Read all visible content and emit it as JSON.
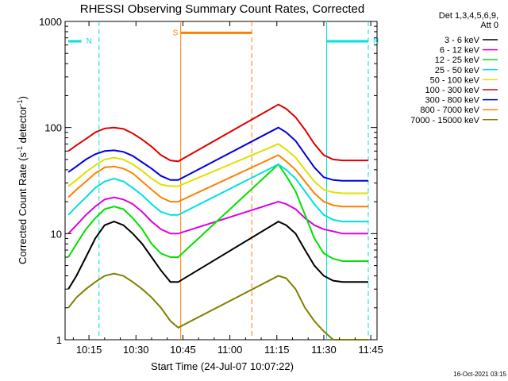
{
  "chart_data": {
    "type": "line",
    "title": "RHESSI Observing Summary Count Rates, Corrected",
    "xlabel": "Start Time (24-Jul-07 10:07:22)",
    "ylabel": "Corrected Count Rate (s⁻¹ detector⁻¹)",
    "ylabel_main": "Corrected Count Rate (s",
    "ylabel_sup1": "-1",
    "ylabel_mid": " detector",
    "ylabel_sup2": "-1",
    "ylabel_end": ")",
    "yscale": "log",
    "ylim": [
      1,
      1000
    ],
    "xlim_minutes": [
      7.37,
      107.0
    ],
    "x_ticks": [
      {
        "label": "10:15",
        "minute": 15
      },
      {
        "label": "10:30",
        "minute": 30
      },
      {
        "label": "10:45",
        "minute": 45
      },
      {
        "label": "11:00",
        "minute": 60
      },
      {
        "label": "11:15",
        "minute": 75
      },
      {
        "label": "11:30",
        "minute": 90
      },
      {
        "label": "11:45",
        "minute": 105
      }
    ],
    "y_ticks": [
      {
        "label": "1",
        "value": 1
      },
      {
        "label": "10",
        "value": 10
      },
      {
        "label": "100",
        "value": 100
      },
      {
        "label": "1000",
        "value": 1000
      }
    ],
    "legend_header": [
      "Det 1,3,4,5,6,9,",
      "Att 0"
    ],
    "legend_position": "right",
    "series": [
      {
        "name": "3 - 6 keV",
        "color": "#000000",
        "x": [
          8.4,
          11,
          14,
          17,
          20,
          23,
          26,
          29,
          32,
          35,
          38,
          41,
          43.5,
          75.5,
          78,
          81,
          84,
          87,
          90,
          93,
          96,
          99,
          102,
          104.2
        ],
        "y": [
          3.0,
          4.0,
          6.0,
          9.0,
          12.0,
          13.0,
          12.0,
          10.0,
          8.0,
          6.0,
          4.5,
          3.5,
          3.5,
          13.0,
          12.0,
          10.0,
          7.0,
          5.0,
          4.0,
          3.6,
          3.5,
          3.5,
          3.5,
          3.5
        ]
      },
      {
        "name": "6 - 12 keV",
        "color": "#e000e0",
        "x": [
          8.4,
          11,
          14,
          17,
          20,
          23,
          26,
          29,
          32,
          35,
          38,
          41,
          43.5,
          75.5,
          78,
          81,
          84,
          87,
          90,
          93,
          96,
          99,
          102,
          104.2
        ],
        "y": [
          10.0,
          12.0,
          15.0,
          18.0,
          21.0,
          22.0,
          21.0,
          19.0,
          16.0,
          13.0,
          11.0,
          10.0,
          10.0,
          20.0,
          19.0,
          17.0,
          14.0,
          12.0,
          11.0,
          10.5,
          10.0,
          10.0,
          10.0,
          10.0
        ]
      },
      {
        "name": "12 - 25 keV",
        "color": "#00e000",
        "x": [
          8.4,
          11,
          14,
          17,
          20,
          23,
          26,
          29,
          32,
          35,
          38,
          41,
          43.5,
          75.5,
          78,
          81,
          84,
          87,
          90,
          93,
          96,
          99,
          102,
          104.2
        ],
        "y": [
          6.0,
          8.0,
          11.0,
          14.0,
          17.0,
          18.0,
          17.0,
          14.0,
          11.0,
          8.0,
          6.5,
          6.0,
          6.0,
          45.0,
          35.0,
          25.0,
          15.0,
          9.0,
          6.5,
          5.8,
          5.5,
          5.5,
          5.5,
          5.5
        ]
      },
      {
        "name": "25 - 50 keV",
        "color": "#00e0e0",
        "x": [
          8.4,
          11,
          14,
          17,
          20,
          23,
          26,
          29,
          32,
          35,
          38,
          41,
          43.5,
          75.5,
          78,
          81,
          84,
          87,
          90,
          93,
          96,
          99,
          102,
          104.2
        ],
        "y": [
          15.0,
          18.0,
          22.0,
          27.0,
          31.0,
          33.0,
          31.0,
          27.0,
          23.0,
          19.0,
          16.0,
          15.0,
          15.0,
          45.0,
          40.0,
          33.0,
          25.0,
          19.0,
          15.0,
          13.5,
          13.0,
          13.0,
          13.0,
          13.0
        ]
      },
      {
        "name": "50 - 100 keV",
        "color": "#e0e000",
        "x": [
          8.4,
          11,
          14,
          17,
          20,
          23,
          26,
          29,
          32,
          35,
          38,
          41,
          43.5,
          75.5,
          78,
          81,
          84,
          87,
          90,
          93,
          96,
          99,
          102,
          104.2
        ],
        "y": [
          28.0,
          32.0,
          38.0,
          44.0,
          50.0,
          52.0,
          50.0,
          45.0,
          39.0,
          33.0,
          29.0,
          28.0,
          28.0,
          70.0,
          62.0,
          52.0,
          40.0,
          31.0,
          26.0,
          24.5,
          24.0,
          24.0,
          24.0,
          24.0
        ]
      },
      {
        "name": "100 - 300 keV",
        "color": "#e00000",
        "x": [
          8.4,
          11,
          14,
          17,
          20,
          23,
          26,
          29,
          32,
          35,
          38,
          41,
          43.5,
          75.5,
          78,
          81,
          84,
          87,
          90,
          93,
          96,
          99,
          102,
          104.2
        ],
        "y": [
          60.0,
          68.0,
          78.0,
          90.0,
          98.0,
          100.0,
          97.0,
          88.0,
          77.0,
          66.0,
          55.0,
          49.0,
          48.0,
          165.0,
          150.0,
          125.0,
          95.0,
          70.0,
          55.0,
          50.0,
          49.0,
          49.0,
          49.0,
          49.0
        ]
      },
      {
        "name": "300 - 800 keV",
        "color": "#0000e0",
        "x": [
          8.4,
          11,
          14,
          17,
          20,
          23,
          26,
          29,
          32,
          35,
          38,
          41,
          43.5,
          75.5,
          78,
          81,
          84,
          87,
          90,
          93,
          96,
          99,
          102,
          104.2
        ],
        "y": [
          38.0,
          43.0,
          50.0,
          56.0,
          60.0,
          61.0,
          59.0,
          54.0,
          47.0,
          41.0,
          35.0,
          32.0,
          32.0,
          100.0,
          90.0,
          75.0,
          56.0,
          42.0,
          34.0,
          32.0,
          31.5,
          31.5,
          31.5,
          31.5
        ]
      },
      {
        "name": "800 - 7000 keV",
        "color": "#ff8000",
        "x": [
          8.4,
          11,
          14,
          17,
          20,
          23,
          26,
          29,
          32,
          35,
          38,
          41,
          43.5,
          75.5,
          78,
          81,
          84,
          87,
          90,
          93,
          96,
          99,
          102,
          104.2
        ],
        "y": [
          22.0,
          26.0,
          31.0,
          37.0,
          42.0,
          43.0,
          41.0,
          37.0,
          31.0,
          26.0,
          22.0,
          20.0,
          20.0,
          55.0,
          48.0,
          40.0,
          31.0,
          24.0,
          20.0,
          18.5,
          18.0,
          18.0,
          18.0,
          18.0
        ]
      },
      {
        "name": "7000 - 15000 keV",
        "color": "#808000",
        "x": [
          8.4,
          11,
          14,
          17,
          20,
          23,
          26,
          29,
          32,
          35,
          38,
          41,
          43.5,
          75.5,
          78,
          81,
          84,
          87,
          90,
          93,
          96,
          99,
          102,
          104.2
        ],
        "y": [
          2.0,
          2.5,
          3.0,
          3.5,
          4.0,
          4.2,
          4.0,
          3.5,
          3.0,
          2.5,
          2.0,
          1.5,
          1.3,
          4.0,
          3.8,
          3.0,
          2.0,
          1.5,
          1.2,
          1.0,
          1.0,
          1.0,
          1.0,
          1.0
        ]
      }
    ],
    "annotations": [
      {
        "label": "N",
        "color": "#00e0e0",
        "bar_from": 8.4,
        "bar_to": 12.6,
        "solid_at": null,
        "dashed_at": 18.2,
        "y": 650
      },
      {
        "label": "N",
        "color": "#00e0e0",
        "bar_from": 90.9,
        "bar_to": 104.2,
        "solid_at": 90.9,
        "dashed_at": 104.2,
        "y": 650
      },
      {
        "label": "S",
        "color": "#ff8000",
        "bar_from": 44.3,
        "bar_to": 67.0,
        "solid_at": 44.3,
        "dashed_at": 67.0,
        "y": 780
      }
    ],
    "grid": false,
    "timestamp": "16-Oct-2021 03:15"
  }
}
